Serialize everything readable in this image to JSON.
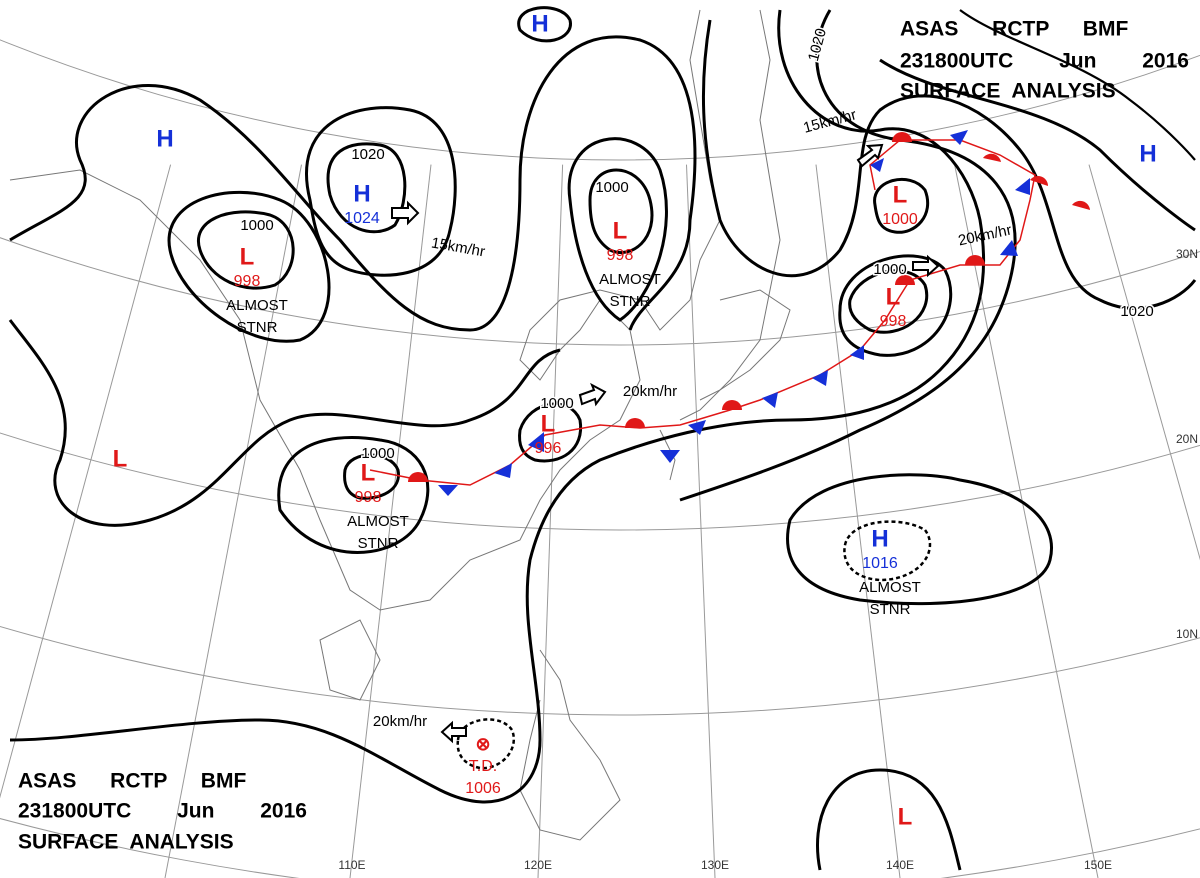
{
  "header": {
    "line1": "ASAS RCTP BMF",
    "line2": "231800UTC Jun 2016",
    "line3": "SURFACE ANALYSIS"
  },
  "colors": {
    "H": "#1530d8",
    "L": "#e01818"
  },
  "systems": [
    {
      "symbol": "H"
    },
    {
      "symbol": "H",
      "pressure": 1024
    },
    {
      "symbol": "L",
      "pressure": 998,
      "note": [
        "ALMOST",
        "STNR"
      ]
    },
    {
      "symbol": "L",
      "pressure": 998,
      "note": [
        "ALMOST",
        "STNR"
      ]
    },
    {
      "symbol": "L",
      "pressure": 1000
    },
    {
      "symbol": "L",
      "pressure": 998
    },
    {
      "symbol": "L",
      "pressure": 996
    },
    {
      "symbol": "L",
      "pressure": 998,
      "note": [
        "ALMOST",
        "STNR"
      ]
    },
    {
      "symbol": "H",
      "pressure": 1016,
      "note": [
        "ALMOST",
        "STNR"
      ]
    },
    {
      "symbol": "H"
    },
    {
      "symbol": "H"
    },
    {
      "symbol": "L"
    },
    {
      "symbol": "L"
    },
    {
      "symbol": "T.D.",
      "pressure": 1006
    }
  ],
  "isobar_labels": [
    1020,
    1000,
    1000,
    1000,
    1000,
    1000,
    1020,
    1020
  ],
  "motions": [
    "15km/hr",
    "15km/hr",
    "20km/hr",
    "20km/hr",
    "20km/hr"
  ],
  "latitudes": [
    "30N",
    "20N",
    "10N"
  ],
  "longitudes": [
    "110E",
    "120E",
    "130E",
    "140E",
    "150E"
  ]
}
